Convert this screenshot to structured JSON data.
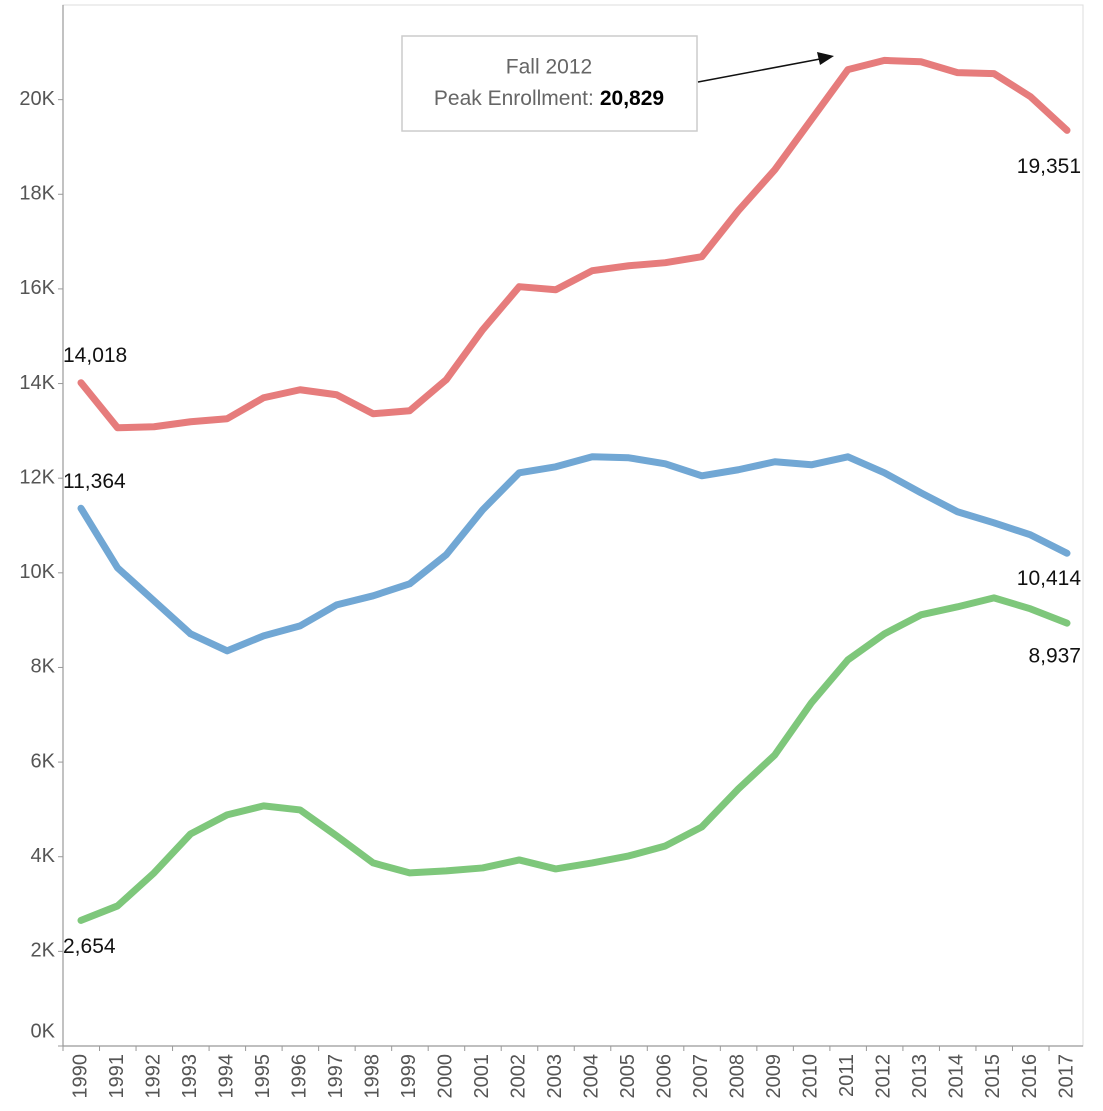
{
  "chart_data": {
    "type": "line",
    "categories": [
      "1990",
      "1991",
      "1992",
      "1993",
      "1994",
      "1995",
      "1996",
      "1997",
      "1998",
      "1999",
      "2000",
      "2001",
      "2002",
      "2003",
      "2004",
      "2005",
      "2006",
      "2007",
      "2008",
      "2009",
      "2010",
      "2011",
      "2012",
      "2013",
      "2014",
      "2015",
      "2016",
      "2017"
    ],
    "series": [
      {
        "color": "#e67c7c",
        "values": [
          14018,
          13066,
          13087,
          13192,
          13256,
          13700,
          13869,
          13763,
          13362,
          13425,
          14080,
          15137,
          16047,
          15983,
          16385,
          16490,
          16554,
          16681,
          17653,
          18520,
          19577,
          20634,
          20829,
          20800,
          20570,
          20550,
          20063,
          19351
        ],
        "value_labels": [
          "14,018",
          null,
          null,
          null,
          null,
          null,
          null,
          null,
          null,
          null,
          null,
          null,
          null,
          null,
          null,
          null,
          null,
          null,
          null,
          null,
          null,
          null,
          "20,829",
          null,
          null,
          null,
          null,
          "19,351"
        ]
      },
      {
        "color": "#71a7d4",
        "values": [
          11364,
          10106,
          9408,
          8710,
          8351,
          8668,
          8879,
          9323,
          9514,
          9767,
          10381,
          11332,
          12114,
          12241,
          12452,
          12431,
          12304,
          12051,
          12178,
          12347,
          12283,
          12452,
          12114,
          11691,
          11290,
          11057,
          10803,
          10414
        ],
        "value_labels": [
          "11,364",
          null,
          null,
          null,
          null,
          null,
          null,
          null,
          null,
          null,
          null,
          null,
          null,
          null,
          null,
          null,
          null,
          null,
          null,
          null,
          null,
          null,
          null,
          null,
          null,
          null,
          null,
          "10,414"
        ]
      },
      {
        "color": "#7ec77b",
        "values": [
          2654,
          2960,
          3658,
          4482,
          4884,
          5074,
          4989,
          4440,
          3869,
          3658,
          3700,
          3763,
          3932,
          3742,
          3869,
          4017,
          4228,
          4630,
          5433,
          6152,
          7252,
          8161,
          8710,
          9112,
          9281,
          9471,
          9239,
          8937
        ],
        "value_labels": [
          "2,654",
          null,
          null,
          null,
          null,
          null,
          null,
          null,
          null,
          null,
          null,
          null,
          null,
          null,
          null,
          null,
          null,
          null,
          null,
          null,
          null,
          null,
          null,
          null,
          null,
          null,
          null,
          "8,937"
        ]
      }
    ],
    "annotation": {
      "title": "Fall 2012",
      "label": "Peak Enrollment:"
    },
    "ylim": [
      0,
      22000
    ],
    "yticks": [
      {
        "value": 0,
        "label": "0K"
      },
      {
        "value": 2000,
        "label": "2K"
      },
      {
        "value": 4000,
        "label": "4K"
      },
      {
        "value": 6000,
        "label": "6K"
      },
      {
        "value": 8000,
        "label": "8K"
      },
      {
        "value": 10000,
        "label": "10K"
      },
      {
        "value": 12000,
        "label": "12K"
      },
      {
        "value": 14000,
        "label": "14K"
      },
      {
        "value": 16000,
        "label": "16K"
      },
      {
        "value": 18000,
        "label": "18K"
      },
      {
        "value": 20000,
        "label": "20K"
      }
    ],
    "grid": false
  }
}
